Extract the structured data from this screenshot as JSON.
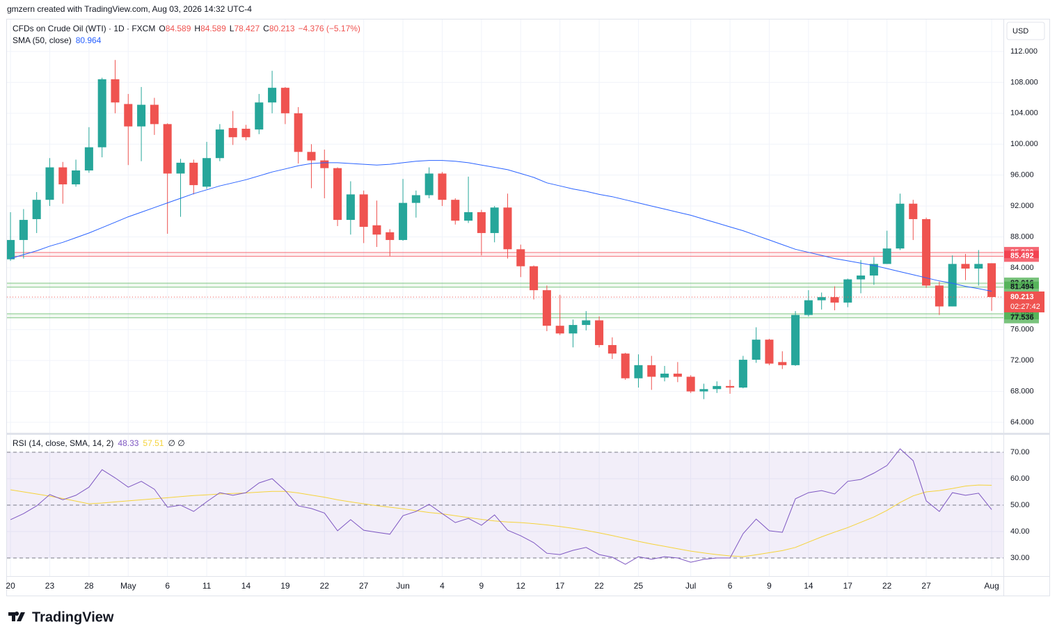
{
  "header": {
    "attribution": "gmzern created with TradingView.com, Aug 03, 2026 14:32 UTC-4",
    "logo": "TradingView"
  },
  "chart_data": [
    {
      "type": "candlestick",
      "title": "CFDs on Crude Oil (WTI) · 1D · FXCM",
      "ohlc_letters": [
        "O",
        "H",
        "L",
        "C"
      ],
      "change_label": "−4.376 (−5.17%)",
      "currency": "USD",
      "up_color": "#26a69a",
      "down_color": "#ef5350",
      "open": [
        85.1,
        87.6,
        90.3,
        92.8,
        97.0,
        94.8,
        96.6,
        99.6,
        108.4,
        105.2,
        102.3,
        105.1,
        102.6,
        96.2,
        97.6,
        94.5,
        98.2,
        102.1,
        102.0,
        101.9,
        105.4,
        107.3,
        104.0,
        99.0,
        97.9,
        96.9,
        90.2,
        93.5,
        89.5,
        88.6,
        87.6,
        92.4,
        93.4,
        96.2,
        92.8,
        90.1,
        91.2,
        88.5,
        91.8,
        86.4,
        84.2,
        81.1,
        76.5,
        75.5,
        76.6,
        77.2,
        74.0,
        72.9,
        69.7,
        71.4,
        69.8,
        70.3,
        69.9,
        68.0,
        68.3,
        68.7,
        68.5,
        72.1,
        74.7,
        71.8,
        71.4,
        77.9,
        79.8,
        80.2,
        79.5,
        82.5,
        83.0,
        84.5,
        86.5,
        92.3,
        90.3,
        81.7,
        79.0,
        84.5,
        83.9,
        84.589
      ],
      "high": [
        91.2,
        91.6,
        93.8,
        98.2,
        97.7,
        98.0,
        102.2,
        108.6,
        110.9,
        106.5,
        107.4,
        106.0,
        102.7,
        98.1,
        98.0,
        100.3,
        102.6,
        104.3,
        102.5,
        106.5,
        109.5,
        107.4,
        104.8,
        100.0,
        99.3,
        97.0,
        95.2,
        94.0,
        92.7,
        89.0,
        95.5,
        94.0,
        97.0,
        96.4,
        93.0,
        95.8,
        91.5,
        92.0,
        93.6,
        87.0,
        84.3,
        81.7,
        80.5,
        77.3,
        78.4,
        77.7,
        75.0,
        73.0,
        72.8,
        72.6,
        71.3,
        71.8,
        70.1,
        69.0,
        69.3,
        69.5,
        72.6,
        76.3,
        74.8,
        73.2,
        78.4,
        81.1,
        80.8,
        81.6,
        82.6,
        85.0,
        85.4,
        88.8,
        93.6,
        92.8,
        90.5,
        82.2,
        85.6,
        85.8,
        86.3,
        84.589
      ],
      "low": [
        84.9,
        85.2,
        88.5,
        92.0,
        92.3,
        94.5,
        96.3,
        98.3,
        104.0,
        97.3,
        97.8,
        101.2,
        88.4,
        90.6,
        93.5,
        94.2,
        97.8,
        99.9,
        100.5,
        101.3,
        104.0,
        102.6,
        97.5,
        94.3,
        93.0,
        89.4,
        88.3,
        87.2,
        86.7,
        85.5,
        87.5,
        90.5,
        93.0,
        92.0,
        89.6,
        89.8,
        85.6,
        87.3,
        85.2,
        82.8,
        79.9,
        75.8,
        75.3,
        73.7,
        75.9,
        73.7,
        72.2,
        69.5,
        68.5,
        68.2,
        69.3,
        69.2,
        67.8,
        67.0,
        67.8,
        67.7,
        68.4,
        71.7,
        71.4,
        70.9,
        71.3,
        77.7,
        78.6,
        78.5,
        78.9,
        80.7,
        81.8,
        84.5,
        86.3,
        87.6,
        81.4,
        77.9,
        79.0,
        82.4,
        81.7,
        78.427
      ],
      "close": [
        87.6,
        90.2,
        92.8,
        97.0,
        94.8,
        96.6,
        99.6,
        108.4,
        105.4,
        102.3,
        105.1,
        102.6,
        96.2,
        97.6,
        94.7,
        98.2,
        101.9,
        100.9,
        100.9,
        105.4,
        107.3,
        104.0,
        99.0,
        97.9,
        96.9,
        90.2,
        93.5,
        89.3,
        88.3,
        87.6,
        92.4,
        93.4,
        96.2,
        92.8,
        90.1,
        91.2,
        88.5,
        91.8,
        86.4,
        84.2,
        81.1,
        76.5,
        75.5,
        76.6,
        77.2,
        74.0,
        72.9,
        69.7,
        71.4,
        69.9,
        70.3,
        69.9,
        68.0,
        68.3,
        68.7,
        68.5,
        72.1,
        74.7,
        71.6,
        71.4,
        77.9,
        79.8,
        80.2,
        79.5,
        82.5,
        83.0,
        84.5,
        86.5,
        92.3,
        90.3,
        81.7,
        79.0,
        84.5,
        83.9,
        84.5,
        80.213
      ],
      "overlay": {
        "name": "SMA (50, close)",
        "color": "#2962ff",
        "values": [
          85.2,
          85.7,
          86.2,
          86.8,
          87.3,
          87.9,
          88.5,
          89.2,
          89.9,
          90.6,
          91.2,
          91.8,
          92.4,
          93.0,
          93.6,
          94.1,
          94.6,
          95.0,
          95.4,
          95.9,
          96.4,
          96.8,
          97.2,
          97.5,
          97.6,
          97.6,
          97.5,
          97.4,
          97.3,
          97.4,
          97.6,
          97.8,
          97.9,
          97.9,
          97.8,
          97.6,
          97.3,
          97.0,
          96.7,
          96.2,
          95.7,
          95.0,
          94.6,
          94.2,
          93.9,
          93.5,
          93.2,
          92.8,
          92.4,
          92.0,
          91.6,
          91.2,
          90.8,
          90.3,
          89.8,
          89.3,
          88.8,
          88.2,
          87.6,
          87.0,
          86.4,
          86.0,
          85.6,
          85.2,
          84.9,
          84.6,
          84.3,
          83.9,
          83.5,
          83.1,
          82.7,
          82.3,
          82.0,
          81.6,
          81.3,
          80.964
        ]
      },
      "zones": [
        {
          "upper": {
            "value": 85.98,
            "label": "85.980"
          },
          "lower": {
            "value": 85.492,
            "label": "85.492"
          },
          "color": "#f23645",
          "text_color": "#ffffff"
        },
        {
          "upper": {
            "value": 82.016,
            "label": "82.016"
          },
          "lower": {
            "value": 81.494,
            "label": "81.494"
          },
          "color": "#4caf50",
          "text_color": "#131722"
        },
        {
          "upper": {
            "value": 78.054,
            "label": "78.054"
          },
          "lower": {
            "value": 77.536,
            "label": "77.536"
          },
          "color": "#4caf50",
          "text_color": "#131722"
        }
      ],
      "countdown": "02:27:42",
      "xlim": [
        -0.27,
        75.9
      ],
      "ylim": [
        62.65,
        116.14
      ],
      "yticks": [
        {
          "value": 64,
          "label": "64.000"
        },
        {
          "value": 68,
          "label": "68.000"
        },
        {
          "value": 72,
          "label": "72.000"
        },
        {
          "value": 76,
          "label": "76.000"
        },
        {
          "value": 80,
          "label": "80.000"
        },
        {
          "value": 84,
          "label": "84.000"
        },
        {
          "value": 88,
          "label": "88.000"
        },
        {
          "value": 92,
          "label": "92.000"
        },
        {
          "value": 96,
          "label": "96.000"
        },
        {
          "value": 100,
          "label": "100.000"
        },
        {
          "value": 104,
          "label": "104.000"
        },
        {
          "value": 108,
          "label": "108.000"
        },
        {
          "value": 112,
          "label": "112.000"
        }
      ],
      "grid": true
    },
    {
      "type": "line",
      "title": "RSI (14, close, SMA, 14, 2)",
      "extra_label": "∅ ∅",
      "series": [
        {
          "color": "#7e57c2",
          "values": [
            44.5,
            46.8,
            49.7,
            54.0,
            52.0,
            53.7,
            56.8,
            63.4,
            60.3,
            56.8,
            59.0,
            56.0,
            49.2,
            50.0,
            47.6,
            51.3,
            54.7,
            53.7,
            54.7,
            58.4,
            60.0,
            55.5,
            49.7,
            48.7,
            47.0,
            40.3,
            44.5,
            40.5,
            39.7,
            39.0,
            46.0,
            47.6,
            50.3,
            46.8,
            43.4,
            45.0,
            42.4,
            46.3,
            40.5,
            38.4,
            35.8,
            31.8,
            31.3,
            32.9,
            34.0,
            31.3,
            30.3,
            27.6,
            30.5,
            29.5,
            30.5,
            30.0,
            28.4,
            29.5,
            30.0,
            30.0,
            39.2,
            44.7,
            40.3,
            39.7,
            52.4,
            54.7,
            55.5,
            54.2,
            59.0,
            59.7,
            62.1,
            65.0,
            71.3,
            66.8,
            51.6,
            47.6,
            54.7,
            53.7,
            54.5,
            48.33
          ]
        },
        {
          "color": "#f5d33a",
          "values": [
            55.8,
            55.0,
            54.2,
            53.4,
            52.5,
            51.5,
            50.5,
            50.8,
            51.2,
            51.6,
            52.0,
            52.4,
            52.8,
            53.2,
            53.6,
            53.9,
            54.2,
            54.4,
            54.6,
            54.9,
            55.2,
            55.2,
            54.6,
            53.8,
            53.0,
            52.0,
            51.2,
            50.5,
            49.8,
            49.2,
            48.6,
            47.9,
            47.2,
            46.7,
            46.0,
            45.3,
            44.6,
            44.0,
            43.6,
            43.4,
            43.0,
            42.5,
            41.9,
            41.2,
            40.4,
            39.5,
            38.5,
            37.4,
            36.3,
            35.3,
            34.4,
            33.5,
            32.6,
            31.9,
            31.3,
            30.8,
            30.5,
            31.2,
            32.0,
            32.8,
            34.0,
            36.0,
            38.0,
            39.8,
            41.5,
            43.5,
            45.5,
            48.0,
            51.0,
            53.5,
            55.0,
            55.5,
            56.3,
            57.2,
            57.6,
            57.51
          ]
        }
      ],
      "band": [
        30,
        70
      ],
      "band_color": "#7e57c2",
      "dashed_levels": [
        30,
        50,
        70
      ],
      "xlim": [
        -0.27,
        75.9
      ],
      "ylim": [
        23.16,
        76.58
      ],
      "yticks": [
        {
          "value": 30,
          "label": "30.00"
        },
        {
          "value": 40,
          "label": "40.00"
        },
        {
          "value": 50,
          "label": "50.00"
        },
        {
          "value": 60,
          "label": "60.00"
        },
        {
          "value": 70,
          "label": "70.00"
        }
      ],
      "xticks": [
        {
          "value": 0,
          "label": "20"
        },
        {
          "value": 3,
          "label": "23"
        },
        {
          "value": 6,
          "label": "28"
        },
        {
          "value": 9,
          "label": "May"
        },
        {
          "value": 12,
          "label": "6"
        },
        {
          "value": 15,
          "label": "11"
        },
        {
          "value": 18,
          "label": "14"
        },
        {
          "value": 21,
          "label": "19"
        },
        {
          "value": 24,
          "label": "22"
        },
        {
          "value": 27,
          "label": "27"
        },
        {
          "value": 30,
          "label": "Jun"
        },
        {
          "value": 33,
          "label": "4"
        },
        {
          "value": 36,
          "label": "9"
        },
        {
          "value": 39,
          "label": "12"
        },
        {
          "value": 42,
          "label": "17"
        },
        {
          "value": 45,
          "label": "22"
        },
        {
          "value": 48,
          "label": "25"
        },
        {
          "value": 52,
          "label": "Jul"
        },
        {
          "value": 55,
          "label": "6"
        },
        {
          "value": 58,
          "label": "9"
        },
        {
          "value": 61,
          "label": "14"
        },
        {
          "value": 64,
          "label": "17"
        },
        {
          "value": 67,
          "label": "22"
        },
        {
          "value": 70,
          "label": "27"
        },
        {
          "value": 75,
          "label": "Aug"
        }
      ],
      "grid": true
    }
  ]
}
